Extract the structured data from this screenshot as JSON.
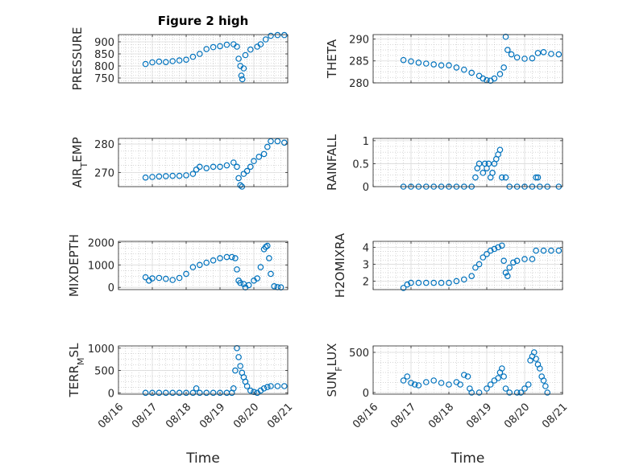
{
  "figure": {
    "title": "Figure 2 high"
  },
  "style": {
    "marker_color": "#0072BD",
    "axis_color": "#262626",
    "grid_color": "#b0b0b0"
  },
  "chart_data": [
    {
      "id": "pressure",
      "type": "scatter",
      "title": "Figure 2 high",
      "ylabel": "PRESSURE",
      "xlabel": "",
      "xlim": [
        0,
        5
      ],
      "ylim": [
        730,
        930
      ],
      "yticks": [
        750,
        800,
        850,
        900
      ],
      "ytick_labels": [
        "750",
        "800",
        "850",
        "900"
      ],
      "xticks": [
        0,
        1,
        2,
        3,
        4,
        5
      ],
      "xtick_labels": [],
      "grid": true,
      "minor_grid": true,
      "points": [
        [
          0.8,
          808
        ],
        [
          1.0,
          815
        ],
        [
          1.2,
          818
        ],
        [
          1.4,
          816
        ],
        [
          1.6,
          820
        ],
        [
          1.8,
          823
        ],
        [
          2.0,
          826
        ],
        [
          2.2,
          838
        ],
        [
          2.4,
          850
        ],
        [
          2.6,
          870
        ],
        [
          2.8,
          878
        ],
        [
          3.0,
          882
        ],
        [
          3.2,
          888
        ],
        [
          3.4,
          890
        ],
        [
          3.5,
          880
        ],
        [
          3.55,
          830
        ],
        [
          3.6,
          800
        ],
        [
          3.63,
          760
        ],
        [
          3.66,
          745
        ],
        [
          3.7,
          790
        ],
        [
          3.75,
          845
        ],
        [
          3.9,
          868
        ],
        [
          4.1,
          880
        ],
        [
          4.2,
          890
        ],
        [
          4.35,
          910
        ],
        [
          4.5,
          925
        ],
        [
          4.7,
          928
        ],
        [
          4.9,
          928
        ]
      ]
    },
    {
      "id": "theta",
      "type": "scatter",
      "title": "",
      "ylabel": "THETA",
      "xlabel": "",
      "xlim": [
        0,
        5
      ],
      "ylim": [
        280,
        291
      ],
      "yticks": [
        280,
        285,
        290
      ],
      "ytick_labels": [
        "280",
        "285",
        "290"
      ],
      "xticks": [
        0,
        1,
        2,
        3,
        4,
        5
      ],
      "xtick_labels": [],
      "grid": true,
      "minor_grid": true,
      "points": [
        [
          0.8,
          285.2
        ],
        [
          1.0,
          284.9
        ],
        [
          1.2,
          284.6
        ],
        [
          1.4,
          284.4
        ],
        [
          1.6,
          284.2
        ],
        [
          1.8,
          284.0
        ],
        [
          2.0,
          284.0
        ],
        [
          2.2,
          283.5
        ],
        [
          2.4,
          283.0
        ],
        [
          2.6,
          282.3
        ],
        [
          2.8,
          281.6
        ],
        [
          2.9,
          281.0
        ],
        [
          3.0,
          280.6
        ],
        [
          3.1,
          280.5
        ],
        [
          3.2,
          281.0
        ],
        [
          3.35,
          282.0
        ],
        [
          3.45,
          283.5
        ],
        [
          3.5,
          290.5
        ],
        [
          3.55,
          287.5
        ],
        [
          3.65,
          286.5
        ],
        [
          3.8,
          285.8
        ],
        [
          4.0,
          285.5
        ],
        [
          4.2,
          285.6
        ],
        [
          4.35,
          286.8
        ],
        [
          4.5,
          287.0
        ],
        [
          4.7,
          286.6
        ],
        [
          4.9,
          286.5
        ]
      ]
    },
    {
      "id": "air_temp",
      "type": "scatter",
      "title": "",
      "ylabel": "AIR_TEMP",
      "ylabel_main": "AIR",
      "ylabel_sub": "T",
      "ylabel_rest": "EMP",
      "xlabel": "",
      "xlim": [
        0,
        5
      ],
      "ylim": [
        265,
        282
      ],
      "yticks": [
        270,
        280
      ],
      "ytick_labels": [
        "270",
        "280"
      ],
      "xticks": [
        0,
        1,
        2,
        3,
        4,
        5
      ],
      "xtick_labels": [],
      "grid": true,
      "minor_grid": true,
      "points": [
        [
          0.8,
          268.2
        ],
        [
          1.0,
          268.4
        ],
        [
          1.2,
          268.6
        ],
        [
          1.4,
          268.7
        ],
        [
          1.6,
          268.8
        ],
        [
          1.8,
          268.8
        ],
        [
          2.0,
          269.0
        ],
        [
          2.2,
          269.5
        ],
        [
          2.3,
          271.0
        ],
        [
          2.4,
          272.0
        ],
        [
          2.6,
          271.5
        ],
        [
          2.8,
          272.0
        ],
        [
          3.0,
          272.0
        ],
        [
          3.2,
          272.5
        ],
        [
          3.4,
          273.5
        ],
        [
          3.5,
          272.0
        ],
        [
          3.55,
          268.0
        ],
        [
          3.6,
          265.5
        ],
        [
          3.65,
          265.0
        ],
        [
          3.7,
          269.5
        ],
        [
          3.8,
          270.5
        ],
        [
          3.9,
          272.0
        ],
        [
          4.0,
          274.0
        ],
        [
          4.15,
          275.5
        ],
        [
          4.3,
          276.5
        ],
        [
          4.4,
          279.0
        ],
        [
          4.5,
          281.0
        ],
        [
          4.7,
          281.0
        ],
        [
          4.9,
          280.5
        ]
      ]
    },
    {
      "id": "rainfall",
      "type": "scatter",
      "title": "",
      "ylabel": "RAINFALL",
      "xlabel": "",
      "xlim": [
        0,
        5
      ],
      "ylim": [
        0,
        1.05
      ],
      "yticks": [
        0,
        0.5,
        1
      ],
      "ytick_labels": [
        "0",
        "0.5",
        "1"
      ],
      "xticks": [
        0,
        1,
        2,
        3,
        4,
        5
      ],
      "xtick_labels": [],
      "grid": true,
      "minor_grid": true,
      "points": [
        [
          0.8,
          0
        ],
        [
          1.0,
          0
        ],
        [
          1.2,
          0
        ],
        [
          1.4,
          0
        ],
        [
          1.6,
          0
        ],
        [
          1.8,
          0
        ],
        [
          2.0,
          0
        ],
        [
          2.2,
          0
        ],
        [
          2.4,
          0
        ],
        [
          2.6,
          0
        ],
        [
          2.7,
          0.2
        ],
        [
          2.75,
          0.4
        ],
        [
          2.8,
          0.5
        ],
        [
          2.9,
          0.3
        ],
        [
          2.95,
          0.5
        ],
        [
          3.0,
          0.4
        ],
        [
          3.05,
          0.5
        ],
        [
          3.1,
          0.2
        ],
        [
          3.15,
          0.3
        ],
        [
          3.2,
          0.5
        ],
        [
          3.25,
          0.6
        ],
        [
          3.3,
          0.7
        ],
        [
          3.35,
          0.8
        ],
        [
          3.4,
          0.2
        ],
        [
          3.5,
          0.2
        ],
        [
          3.6,
          0
        ],
        [
          3.8,
          0
        ],
        [
          4.0,
          0
        ],
        [
          4.2,
          0
        ],
        [
          4.3,
          0.2
        ],
        [
          4.35,
          0.2
        ],
        [
          4.4,
          0
        ],
        [
          4.6,
          0
        ],
        [
          4.9,
          0
        ]
      ]
    },
    {
      "id": "mixdepth",
      "type": "scatter",
      "title": "",
      "ylabel": "MIXDEPTH",
      "xlabel": "",
      "xlim": [
        0,
        5
      ],
      "ylim": [
        -100,
        2050
      ],
      "yticks": [
        0,
        1000,
        2000
      ],
      "ytick_labels": [
        "0",
        "1000",
        "2000"
      ],
      "xticks": [
        0,
        1,
        2,
        3,
        4,
        5
      ],
      "xtick_labels": [],
      "grid": true,
      "minor_grid": true,
      "points": [
        [
          0.8,
          450
        ],
        [
          0.9,
          300
        ],
        [
          1.0,
          400
        ],
        [
          1.2,
          420
        ],
        [
          1.4,
          380
        ],
        [
          1.6,
          330
        ],
        [
          1.8,
          420
        ],
        [
          2.0,
          600
        ],
        [
          2.2,
          900
        ],
        [
          2.4,
          1000
        ],
        [
          2.6,
          1100
        ],
        [
          2.8,
          1200
        ],
        [
          3.0,
          1300
        ],
        [
          3.2,
          1350
        ],
        [
          3.35,
          1350
        ],
        [
          3.45,
          1300
        ],
        [
          3.5,
          800
        ],
        [
          3.55,
          300
        ],
        [
          3.6,
          200
        ],
        [
          3.7,
          150
        ],
        [
          3.75,
          0
        ],
        [
          3.85,
          100
        ],
        [
          4.0,
          300
        ],
        [
          4.1,
          400
        ],
        [
          4.2,
          900
        ],
        [
          4.3,
          1700
        ],
        [
          4.35,
          1800
        ],
        [
          4.4,
          1850
        ],
        [
          4.45,
          1300
        ],
        [
          4.5,
          600
        ],
        [
          4.6,
          50
        ],
        [
          4.7,
          10
        ],
        [
          4.8,
          0
        ]
      ]
    },
    {
      "id": "h2omixra",
      "type": "scatter",
      "title": "",
      "ylabel": "H2OMIXRA",
      "xlabel": "",
      "xlim": [
        0,
        5
      ],
      "ylim": [
        1.5,
        4.35
      ],
      "yticks": [
        2,
        3,
        4
      ],
      "ytick_labels": [
        "2",
        "3",
        "4"
      ],
      "xticks": [
        0,
        1,
        2,
        3,
        4,
        5
      ],
      "xtick_labels": [],
      "grid": true,
      "minor_grid": true,
      "points": [
        [
          0.8,
          1.6
        ],
        [
          0.9,
          1.8
        ],
        [
          1.0,
          1.9
        ],
        [
          1.2,
          1.9
        ],
        [
          1.4,
          1.9
        ],
        [
          1.6,
          1.9
        ],
        [
          1.8,
          1.9
        ],
        [
          2.0,
          1.9
        ],
        [
          2.2,
          2.0
        ],
        [
          2.4,
          2.1
        ],
        [
          2.6,
          2.3
        ],
        [
          2.7,
          2.8
        ],
        [
          2.8,
          3.0
        ],
        [
          2.9,
          3.4
        ],
        [
          3.0,
          3.6
        ],
        [
          3.1,
          3.8
        ],
        [
          3.2,
          3.9
        ],
        [
          3.3,
          4.0
        ],
        [
          3.4,
          4.1
        ],
        [
          3.45,
          3.2
        ],
        [
          3.5,
          2.5
        ],
        [
          3.55,
          2.3
        ],
        [
          3.6,
          2.8
        ],
        [
          3.7,
          3.1
        ],
        [
          3.8,
          3.2
        ],
        [
          4.0,
          3.3
        ],
        [
          4.2,
          3.3
        ],
        [
          4.3,
          3.8
        ],
        [
          4.5,
          3.8
        ],
        [
          4.7,
          3.8
        ],
        [
          4.9,
          3.8
        ]
      ]
    },
    {
      "id": "terr_msl",
      "type": "scatter",
      "title": "",
      "ylabel": "TERR_MSL",
      "ylabel_main": "TERR",
      "ylabel_sub": "M",
      "ylabel_rest": "SL",
      "xlabel": "Time",
      "xlim": [
        0,
        5
      ],
      "ylim": [
        -30,
        1050
      ],
      "yticks": [
        0,
        500,
        1000
      ],
      "ytick_labels": [
        "0",
        "500",
        "1000"
      ],
      "xticks": [
        0,
        1,
        2,
        3,
        4,
        5
      ],
      "xtick_labels": [
        "08/16",
        "08/17",
        "08/18",
        "08/19",
        "08/20",
        "08/21"
      ],
      "grid": true,
      "minor_grid": true,
      "points": [
        [
          0.8,
          0
        ],
        [
          1.0,
          0
        ],
        [
          1.2,
          0
        ],
        [
          1.4,
          0
        ],
        [
          1.6,
          0
        ],
        [
          1.8,
          0
        ],
        [
          2.0,
          0
        ],
        [
          2.2,
          0
        ],
        [
          2.3,
          100
        ],
        [
          2.4,
          0
        ],
        [
          2.6,
          0
        ],
        [
          2.8,
          0
        ],
        [
          3.0,
          0
        ],
        [
          3.2,
          0
        ],
        [
          3.35,
          0
        ],
        [
          3.4,
          100
        ],
        [
          3.45,
          500
        ],
        [
          3.5,
          1000
        ],
        [
          3.55,
          800
        ],
        [
          3.6,
          600
        ],
        [
          3.65,
          450
        ],
        [
          3.7,
          350
        ],
        [
          3.75,
          250
        ],
        [
          3.8,
          150
        ],
        [
          3.9,
          50
        ],
        [
          4.0,
          20
        ],
        [
          4.1,
          0
        ],
        [
          4.2,
          50
        ],
        [
          4.3,
          100
        ],
        [
          4.4,
          130
        ],
        [
          4.5,
          150
        ],
        [
          4.7,
          150
        ],
        [
          4.9,
          150
        ]
      ]
    },
    {
      "id": "sun_flux",
      "type": "scatter",
      "title": "",
      "ylabel": "SUN_FLUX",
      "ylabel_main": "SUN",
      "ylabel_sub": "F",
      "ylabel_rest": "LUX",
      "xlabel": "Time",
      "xlim": [
        0,
        5
      ],
      "ylim": [
        -20,
        580
      ],
      "yticks": [
        0,
        500
      ],
      "ytick_labels": [
        "0",
        "500"
      ],
      "xticks": [
        0,
        1,
        2,
        3,
        4,
        5
      ],
      "xtick_labels": [
        "08/16",
        "08/17",
        "08/18",
        "08/19",
        "08/20",
        "08/21"
      ],
      "grid": true,
      "minor_grid": true,
      "points": [
        [
          0.8,
          150
        ],
        [
          0.9,
          200
        ],
        [
          1.0,
          120
        ],
        [
          1.1,
          100
        ],
        [
          1.2,
          90
        ],
        [
          1.4,
          130
        ],
        [
          1.6,
          150
        ],
        [
          1.8,
          120
        ],
        [
          2.0,
          100
        ],
        [
          2.2,
          130
        ],
        [
          2.3,
          100
        ],
        [
          2.4,
          220
        ],
        [
          2.5,
          200
        ],
        [
          2.55,
          50
        ],
        [
          2.6,
          0
        ],
        [
          2.8,
          0
        ],
        [
          3.0,
          50
        ],
        [
          3.1,
          100
        ],
        [
          3.2,
          150
        ],
        [
          3.3,
          180
        ],
        [
          3.35,
          250
        ],
        [
          3.4,
          300
        ],
        [
          3.45,
          200
        ],
        [
          3.5,
          50
        ],
        [
          3.6,
          0
        ],
        [
          3.8,
          0
        ],
        [
          3.9,
          0
        ],
        [
          4.0,
          50
        ],
        [
          4.1,
          100
        ],
        [
          4.15,
          400
        ],
        [
          4.2,
          450
        ],
        [
          4.25,
          500
        ],
        [
          4.3,
          420
        ],
        [
          4.35,
          350
        ],
        [
          4.4,
          300
        ],
        [
          4.45,
          200
        ],
        [
          4.5,
          150
        ],
        [
          4.55,
          80
        ],
        [
          4.6,
          0
        ]
      ]
    }
  ]
}
